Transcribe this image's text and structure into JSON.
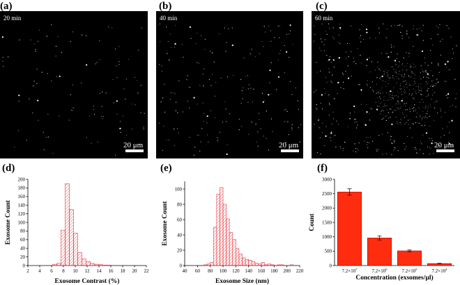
{
  "panels": {
    "a": {
      "label": "(a)",
      "time": "20 min",
      "scalebar": "20 μm",
      "density": 0.35
    },
    "b": {
      "label": "(b)",
      "time": "40 min",
      "scalebar": "20 μm",
      "density": 0.6
    },
    "c": {
      "label": "(c)",
      "time": "60 min",
      "scalebar": "20 μm",
      "density": 1.0
    },
    "d": {
      "label": "(d)"
    },
    "e": {
      "label": "(e)"
    },
    "f": {
      "label": "(f)"
    }
  },
  "colors": {
    "hist": "#e8303a",
    "bar": "#ff2d10",
    "bar_edge": "#b00000",
    "image_bg": "#000000"
  },
  "chart_data": [
    {
      "id": "d",
      "type": "bar",
      "style": "histogram-hatched",
      "xlabel": "Exosome Contrast (%)",
      "ylabel": "Exosome Count",
      "xlim": [
        2,
        22
      ],
      "ylim": [
        0,
        200
      ],
      "xticks": [
        2,
        4,
        6,
        8,
        10,
        12,
        14,
        16,
        18,
        20,
        22
      ],
      "yticks": [
        0,
        20,
        40,
        60,
        80,
        100,
        120,
        140,
        160,
        180,
        200
      ],
      "bin_width": 0.7,
      "bins": [
        6.2,
        6.9,
        7.6,
        8.3,
        9.0,
        9.7,
        10.4,
        11.1,
        11.8,
        12.5,
        13.2,
        13.9,
        14.6,
        15.3
      ],
      "values": [
        3,
        5,
        82,
        190,
        130,
        75,
        30,
        15,
        9,
        5,
        3,
        2,
        1,
        1
      ]
    },
    {
      "id": "e",
      "type": "bar",
      "style": "histogram-hatched",
      "xlabel": "Exosome Size (nm)",
      "ylabel": "Exosome Count",
      "xlim": [
        40,
        220
      ],
      "ylim": [
        0,
        110
      ],
      "xticks": [
        40,
        60,
        80,
        100,
        120,
        140,
        160,
        180,
        200,
        220
      ],
      "yticks": [
        0,
        20,
        40,
        60,
        80,
        100
      ],
      "bin_width": 5,
      "bins": [
        70,
        75,
        80,
        85,
        90,
        95,
        100,
        105,
        110,
        115,
        120,
        125,
        130,
        135,
        140,
        145,
        150,
        155,
        160,
        165,
        170,
        175,
        180,
        185,
        190,
        195,
        200,
        205
      ],
      "values": [
        1,
        2,
        4,
        50,
        93,
        102,
        80,
        61,
        43,
        34,
        22,
        15,
        10,
        8,
        7,
        5,
        3,
        2,
        4,
        1,
        2,
        1,
        0,
        1,
        1,
        0,
        0,
        1
      ]
    },
    {
      "id": "f",
      "type": "bar",
      "xlabel": "Concentration (exsomes/µl)",
      "ylabel": "Count",
      "ylim": [
        0,
        3000
      ],
      "yticks": [
        0,
        500,
        1000,
        1500,
        2000,
        2500,
        3000
      ],
      "categories": [
        {
          "base": "7.2×10",
          "exp": "7"
        },
        {
          "base": "7.2×10",
          "exp": "6"
        },
        {
          "base": "7.2×10",
          "exp": "5"
        },
        {
          "base": "7.2×10",
          "exp": "4"
        }
      ],
      "values": [
        2560,
        960,
        510,
        70
      ],
      "errors": [
        110,
        70,
        30,
        8
      ]
    }
  ]
}
